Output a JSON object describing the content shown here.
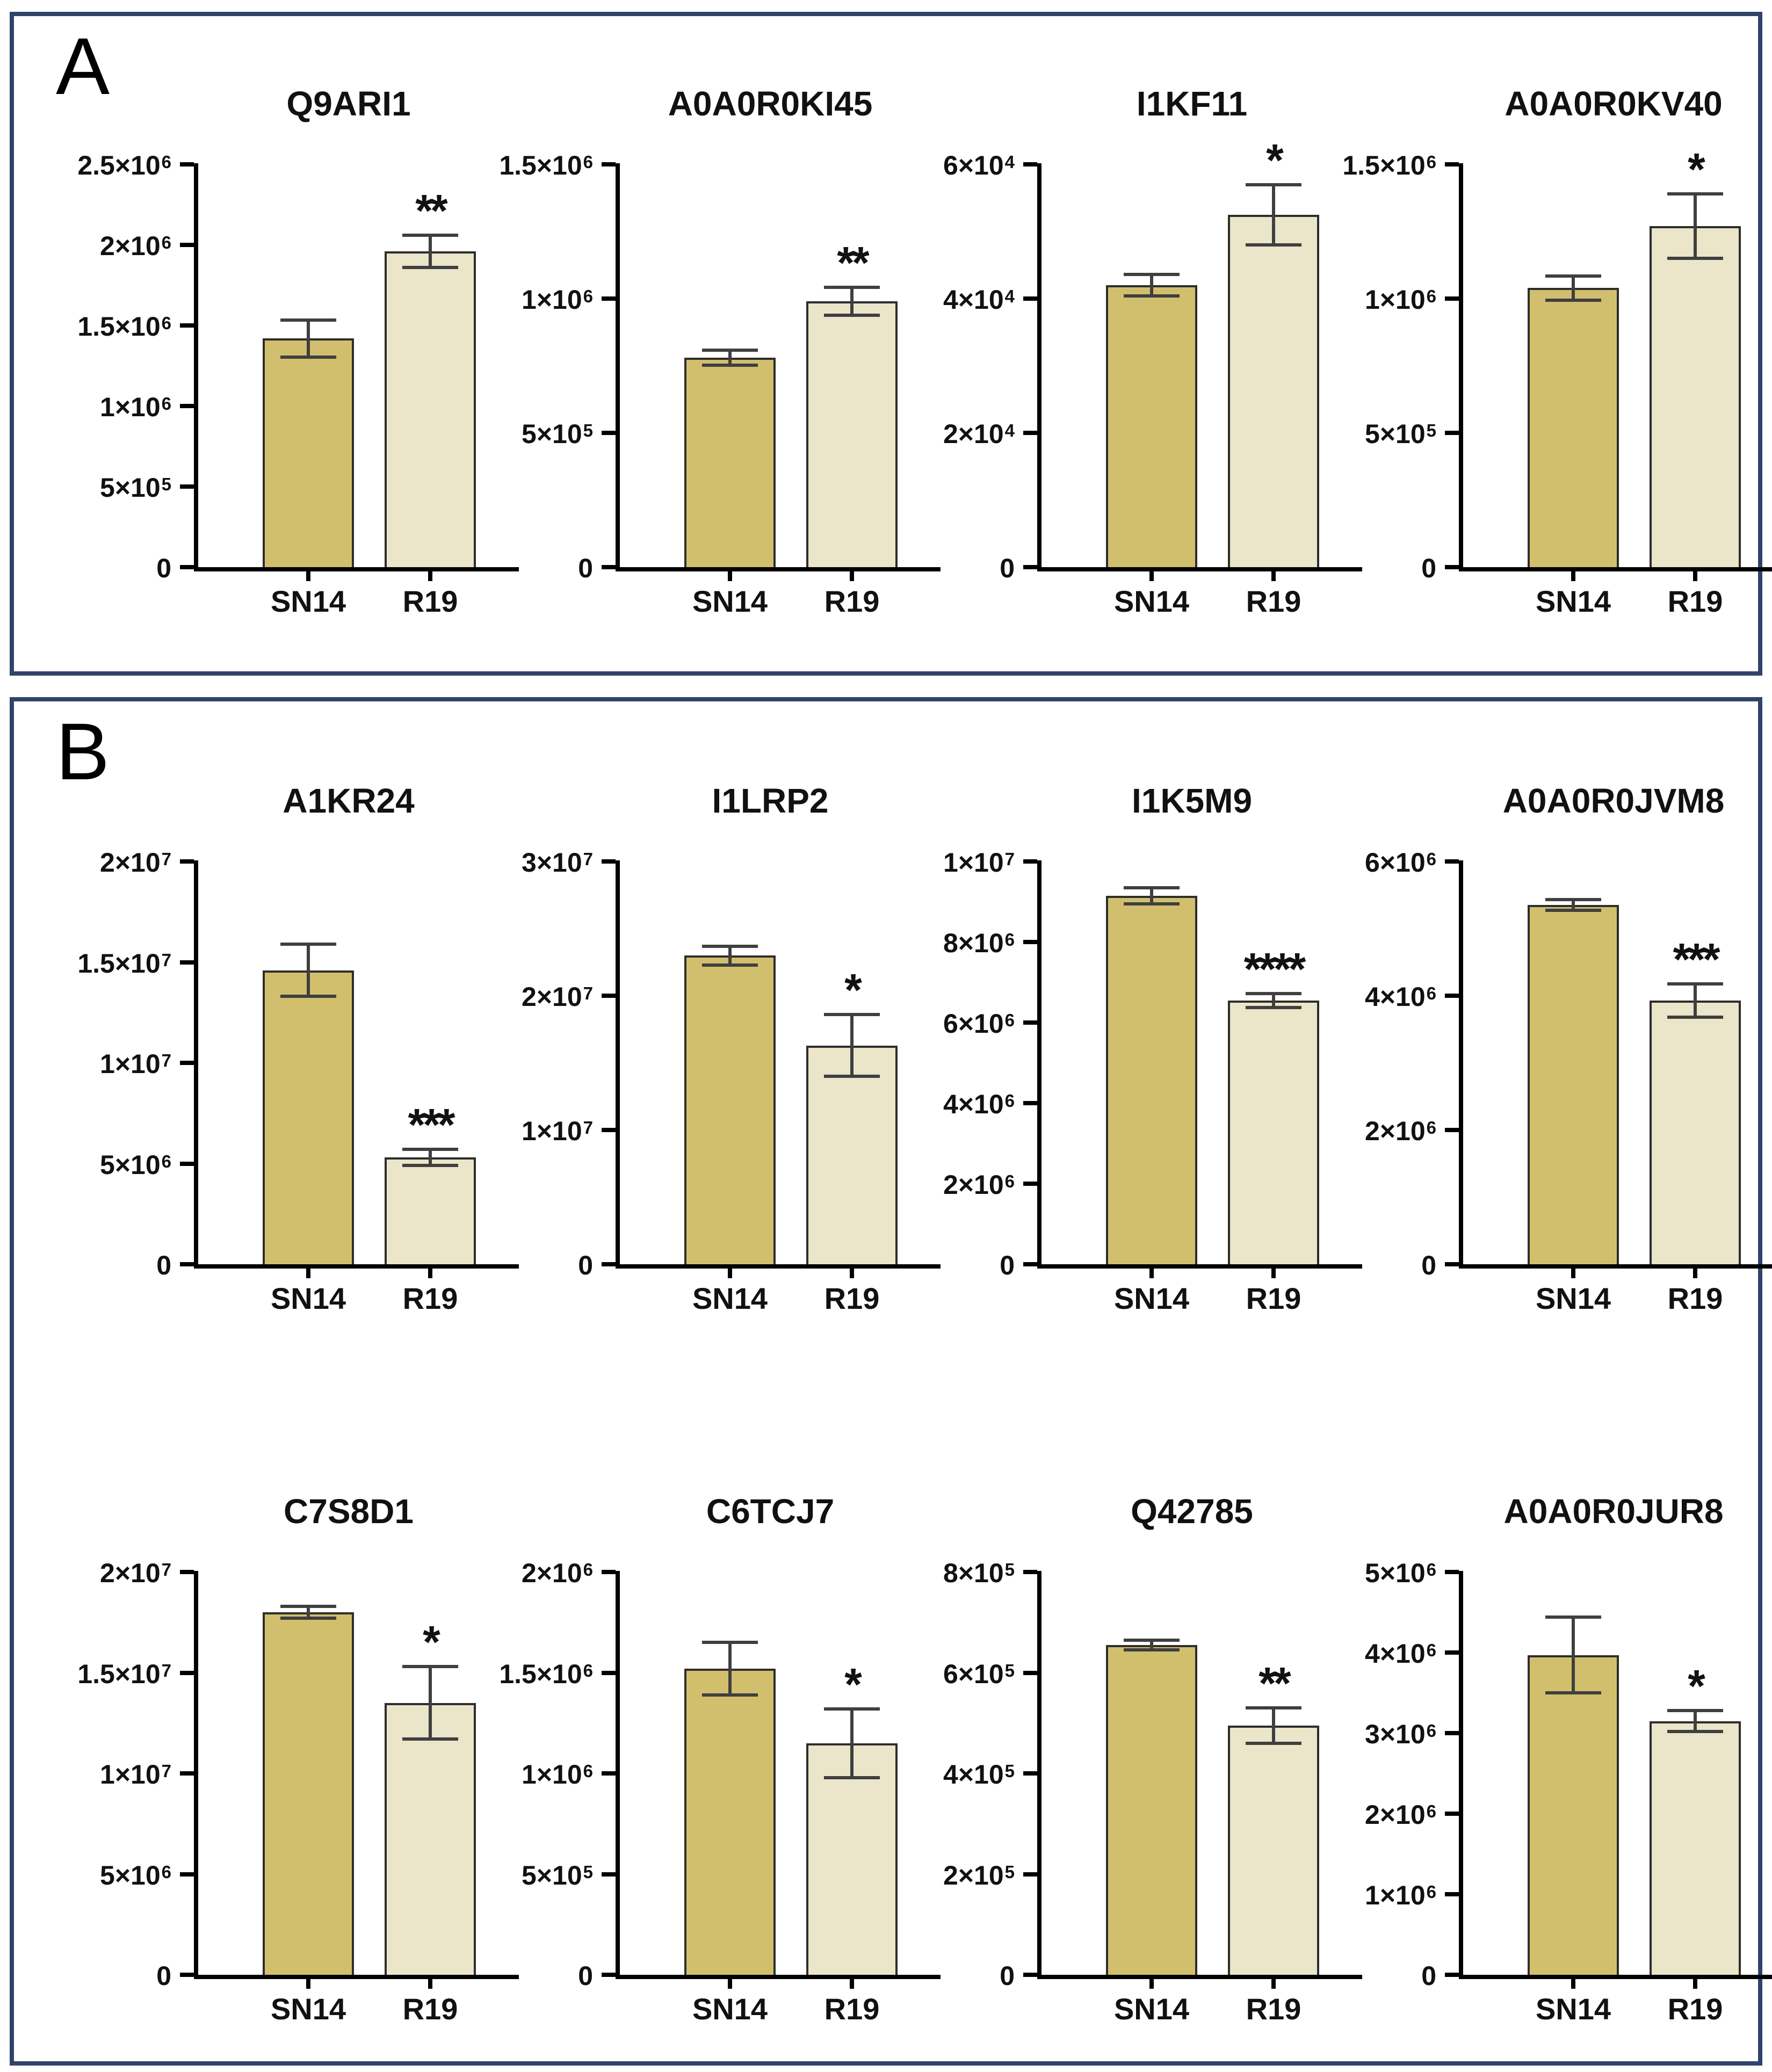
{
  "figure": {
    "background": "#ffffff",
    "panel_border_color": "#2f4468",
    "bar_colors": {
      "SN14": "#d2bf6e",
      "R19": "#ebe5c9"
    },
    "bar_outline_color": "#2d2d2d",
    "error_bar_color": "#3f3f3f",
    "axis_color": "#000000"
  },
  "categories": [
    "SN14",
    "R19"
  ],
  "panels": [
    {
      "label": "A",
      "rows": [
        [
          0,
          1,
          2,
          3
        ]
      ]
    },
    {
      "label": "B",
      "rows": [
        [
          4,
          5,
          6,
          7
        ],
        [
          8,
          9,
          10,
          11
        ]
      ]
    }
  ],
  "chart_data": [
    {
      "type": "bar",
      "title": "Q9ARI1",
      "xlabel": "",
      "ylabel": "",
      "ylim": [
        0,
        2500000
      ],
      "grid": false,
      "legend": "none",
      "yticks": [
        {
          "v": 0,
          "label": "0"
        },
        {
          "v": 500000,
          "label": "5×10^5"
        },
        {
          "v": 1000000,
          "label": "1×10^6"
        },
        {
          "v": 1500000,
          "label": "1.5×10^6"
        },
        {
          "v": 2000000,
          "label": "2×10^6"
        },
        {
          "v": 2500000,
          "label": "2.5×10^6"
        }
      ],
      "series": [
        {
          "name": "SN14",
          "value": 1420000,
          "err": 115000,
          "sig": null
        },
        {
          "name": "R19",
          "value": 1960000,
          "err": 100000,
          "sig": "**"
        }
      ]
    },
    {
      "type": "bar",
      "title": "A0A0R0KI45",
      "xlabel": "",
      "ylabel": "",
      "ylim": [
        0,
        1500000
      ],
      "grid": false,
      "legend": "none",
      "yticks": [
        {
          "v": 0,
          "label": "0"
        },
        {
          "v": 500000,
          "label": "5×10^5"
        },
        {
          "v": 1000000,
          "label": "1×10^6"
        },
        {
          "v": 1500000,
          "label": "1.5×10^6"
        }
      ],
      "series": [
        {
          "name": "SN14",
          "value": 780000,
          "err": 28000,
          "sig": null
        },
        {
          "name": "R19",
          "value": 990000,
          "err": 52000,
          "sig": "**"
        }
      ]
    },
    {
      "type": "bar",
      "title": "I1KF11",
      "xlabel": "",
      "ylabel": "",
      "ylim": [
        0,
        60000
      ],
      "grid": false,
      "legend": "none",
      "yticks": [
        {
          "v": 0,
          "label": "0"
        },
        {
          "v": 20000,
          "label": "2×10^4"
        },
        {
          "v": 40000,
          "label": "4×10^4"
        },
        {
          "v": 60000,
          "label": "6×10^4"
        }
      ],
      "series": [
        {
          "name": "SN14",
          "value": 42000,
          "err": 1600,
          "sig": null
        },
        {
          "name": "R19",
          "value": 52500,
          "err": 4500,
          "sig": "*"
        }
      ]
    },
    {
      "type": "bar",
      "title": "A0A0R0KV40",
      "xlabel": "",
      "ylabel": "",
      "ylim": [
        0,
        1500000
      ],
      "grid": false,
      "legend": "none",
      "yticks": [
        {
          "v": 0,
          "label": "0"
        },
        {
          "v": 500000,
          "label": "5×10^5"
        },
        {
          "v": 1000000,
          "label": "1×10^6"
        },
        {
          "v": 1500000,
          "label": "1.5×10^6"
        }
      ],
      "series": [
        {
          "name": "SN14",
          "value": 1040000,
          "err": 45000,
          "sig": null
        },
        {
          "name": "R19",
          "value": 1270000,
          "err": 120000,
          "sig": "*"
        }
      ]
    },
    {
      "type": "bar",
      "title": "A1KR24",
      "xlabel": "",
      "ylabel": "",
      "ylim": [
        0,
        20000000
      ],
      "grid": false,
      "legend": "none",
      "yticks": [
        {
          "v": 0,
          "label": "0"
        },
        {
          "v": 5000000,
          "label": "5×10^6"
        },
        {
          "v": 10000000,
          "label": "1×10^7"
        },
        {
          "v": 15000000,
          "label": "1.5×10^7"
        },
        {
          "v": 20000000,
          "label": "2×10^7"
        }
      ],
      "series": [
        {
          "name": "SN14",
          "value": 14600000,
          "err": 1300000,
          "sig": null
        },
        {
          "name": "R19",
          "value": 5300000,
          "err": 400000,
          "sig": "***"
        }
      ]
    },
    {
      "type": "bar",
      "title": "I1LRP2",
      "xlabel": "",
      "ylabel": "",
      "ylim": [
        0,
        30000000
      ],
      "grid": false,
      "legend": "none",
      "yticks": [
        {
          "v": 0,
          "label": "0"
        },
        {
          "v": 10000000,
          "label": "1×10^7"
        },
        {
          "v": 20000000,
          "label": "2×10^7"
        },
        {
          "v": 30000000,
          "label": "3×10^7"
        }
      ],
      "series": [
        {
          "name": "SN14",
          "value": 23000000,
          "err": 700000,
          "sig": null
        },
        {
          "name": "R19",
          "value": 16300000,
          "err": 2300000,
          "sig": "*"
        }
      ]
    },
    {
      "type": "bar",
      "title": "I1K5M9",
      "xlabel": "",
      "ylabel": "",
      "ylim": [
        0,
        10000000
      ],
      "grid": false,
      "legend": "none",
      "yticks": [
        {
          "v": 0,
          "label": "0"
        },
        {
          "v": 2000000,
          "label": "2×10^6"
        },
        {
          "v": 4000000,
          "label": "4×10^6"
        },
        {
          "v": 6000000,
          "label": "6×10^6"
        },
        {
          "v": 8000000,
          "label": "8×10^6"
        },
        {
          "v": 10000000,
          "label": "1×10^7"
        }
      ],
      "series": [
        {
          "name": "SN14",
          "value": 9150000,
          "err": 200000,
          "sig": null
        },
        {
          "name": "R19",
          "value": 6550000,
          "err": 170000,
          "sig": "****"
        }
      ]
    },
    {
      "type": "bar",
      "title": "A0A0R0JVM8",
      "xlabel": "",
      "ylabel": "",
      "ylim": [
        0,
        6000000
      ],
      "grid": false,
      "legend": "none",
      "yticks": [
        {
          "v": 0,
          "label": "0"
        },
        {
          "v": 2000000,
          "label": "2×10^6"
        },
        {
          "v": 4000000,
          "label": "4×10^6"
        },
        {
          "v": 6000000,
          "label": "6×10^6"
        }
      ],
      "series": [
        {
          "name": "SN14",
          "value": 5350000,
          "err": 80000,
          "sig": null
        },
        {
          "name": "R19",
          "value": 3930000,
          "err": 250000,
          "sig": "***"
        }
      ]
    },
    {
      "type": "bar",
      "title": "C7S8D1",
      "xlabel": "",
      "ylabel": "",
      "ylim": [
        0,
        20000000
      ],
      "grid": false,
      "legend": "none",
      "yticks": [
        {
          "v": 0,
          "label": "0"
        },
        {
          "v": 5000000,
          "label": "5×10^6"
        },
        {
          "v": 10000000,
          "label": "1×10^7"
        },
        {
          "v": 15000000,
          "label": "1.5×10^7"
        },
        {
          "v": 20000000,
          "label": "2×10^7"
        }
      ],
      "series": [
        {
          "name": "SN14",
          "value": 18000000,
          "err": 300000,
          "sig": null
        },
        {
          "name": "R19",
          "value": 13500000,
          "err": 1800000,
          "sig": "*"
        }
      ]
    },
    {
      "type": "bar",
      "title": "C6TCJ7",
      "xlabel": "",
      "ylabel": "",
      "ylim": [
        0,
        2000000
      ],
      "grid": false,
      "legend": "none",
      "yticks": [
        {
          "v": 0,
          "label": "0"
        },
        {
          "v": 500000,
          "label": "5×10^5"
        },
        {
          "v": 1000000,
          "label": "1×10^6"
        },
        {
          "v": 1500000,
          "label": "1.5×10^6"
        },
        {
          "v": 2000000,
          "label": "2×10^6"
        }
      ],
      "series": [
        {
          "name": "SN14",
          "value": 1520000,
          "err": 130000,
          "sig": null
        },
        {
          "name": "R19",
          "value": 1150000,
          "err": 170000,
          "sig": "*"
        }
      ]
    },
    {
      "type": "bar",
      "title": "Q42785",
      "xlabel": "",
      "ylabel": "",
      "ylim": [
        0,
        800000
      ],
      "grid": false,
      "legend": "none",
      "yticks": [
        {
          "v": 0,
          "label": "0"
        },
        {
          "v": 200000,
          "label": "2×10^5"
        },
        {
          "v": 400000,
          "label": "4×10^5"
        },
        {
          "v": 600000,
          "label": "6×10^5"
        },
        {
          "v": 800000,
          "label": "8×10^5"
        }
      ],
      "series": [
        {
          "name": "SN14",
          "value": 655000,
          "err": 10000,
          "sig": null
        },
        {
          "name": "R19",
          "value": 495000,
          "err": 35000,
          "sig": "**"
        }
      ]
    },
    {
      "type": "bar",
      "title": "A0A0R0JUR8",
      "xlabel": "",
      "ylabel": "",
      "ylim": [
        0,
        5000000
      ],
      "grid": false,
      "legend": "none",
      "yticks": [
        {
          "v": 0,
          "label": "0"
        },
        {
          "v": 1000000,
          "label": "1×10^6"
        },
        {
          "v": 2000000,
          "label": "2×10^6"
        },
        {
          "v": 3000000,
          "label": "3×10^6"
        },
        {
          "v": 4000000,
          "label": "4×10^6"
        },
        {
          "v": 5000000,
          "label": "5×10^6"
        }
      ],
      "series": [
        {
          "name": "SN14",
          "value": 3970000,
          "err": 470000,
          "sig": null
        },
        {
          "name": "R19",
          "value": 3150000,
          "err": 130000,
          "sig": "*"
        }
      ]
    }
  ]
}
